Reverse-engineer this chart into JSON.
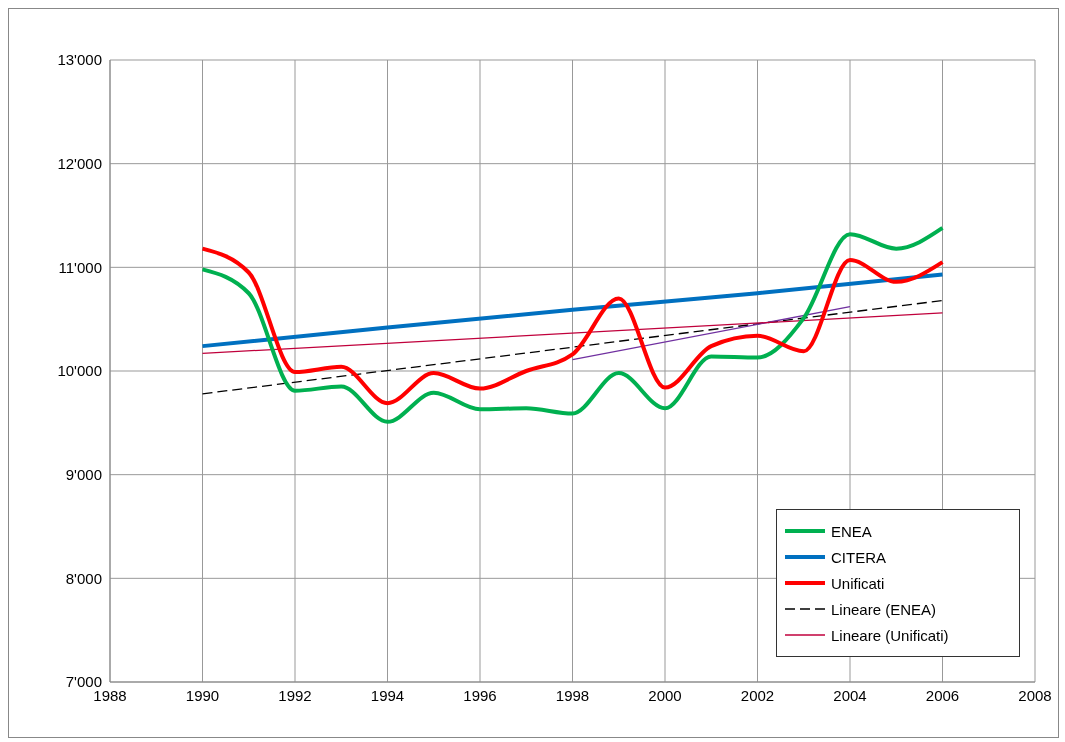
{
  "chart_data": {
    "type": "line",
    "xlim": [
      1988,
      2008
    ],
    "xticks": [
      1988,
      1990,
      1992,
      1994,
      1996,
      1998,
      2000,
      2002,
      2004,
      2006,
      2008
    ],
    "ylim": [
      7000,
      13000
    ],
    "yticks": [
      {
        "value": 7000,
        "label": "7'000"
      },
      {
        "value": 8000,
        "label": "8'000"
      },
      {
        "value": 9000,
        "label": "9'000"
      },
      {
        "value": 10000,
        "label": "10'000"
      },
      {
        "value": 11000,
        "label": "11'000"
      },
      {
        "value": 12000,
        "label": "12'000"
      },
      {
        "value": 13000,
        "label": "13'000"
      }
    ],
    "grid": true,
    "legend": "bottom right",
    "marker": "none",
    "series": [
      {
        "name": "Lineare (ENEA)",
        "color": "#000000",
        "line_style": "dashed",
        "x": [
          1990,
          2006
        ],
        "values": [
          9780,
          10680
        ]
      },
      {
        "color": "#7030a0",
        "x": [
          1998,
          2004
        ],
        "values": [
          10110,
          10620
        ]
      },
      {
        "name": "Lineare (Unificati)",
        "color": "#c0003c",
        "x": [
          1990,
          2006
        ],
        "values": [
          10170,
          10560
        ]
      },
      {
        "name": "CITERA",
        "color": "#0070c0",
        "x": [
          1990,
          1994,
          1998,
          2002,
          2006
        ],
        "values": [
          10240,
          10420,
          10590,
          10750,
          10930
        ]
      },
      {
        "name": "ENEA",
        "color": "#00b050",
        "x": [
          1990,
          1991,
          1992,
          1993,
          1994,
          1995,
          1996,
          1997,
          1998,
          1999,
          2000,
          2001,
          2002,
          2003,
          2004,
          2005,
          2006
        ],
        "values": [
          10980,
          10750,
          9810,
          9850,
          9510,
          9790,
          9630,
          9640,
          9590,
          9980,
          9640,
          10140,
          10130,
          10510,
          11320,
          11180,
          11380
        ]
      },
      {
        "name": "Unificati",
        "color": "#ff0000",
        "x": [
          1990,
          1991,
          1992,
          1993,
          1994,
          1995,
          1996,
          1997,
          1998,
          1999,
          2000,
          2001,
          2002,
          2003,
          2004,
          2005,
          2006
        ],
        "values": [
          11180,
          10950,
          9990,
          10040,
          9690,
          9980,
          9830,
          10000,
          10160,
          10700,
          9840,
          10240,
          10340,
          10190,
          11070,
          10860,
          11050
        ]
      }
    ]
  }
}
